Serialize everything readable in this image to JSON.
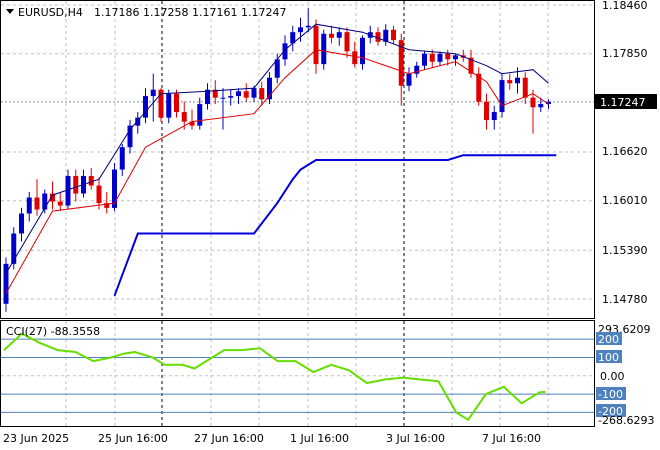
{
  "header": {
    "symbol": "EURUSD,H4",
    "ohlc": "1.17186 1.17258 1.17161 1.17247"
  },
  "price_axis": {
    "ticks": [
      "1.18460",
      "1.17850",
      "1.16620",
      "1.16010",
      "1.15390",
      "1.14780"
    ],
    "current_price": "1.17247"
  },
  "time_axis": {
    "ticks": [
      "23 Jun 2025",
      "25 Jun 16:00",
      "27 Jun 16:00",
      "1 Jul 16:00",
      "3 Jul 16:00",
      "7 Jul 16:00"
    ]
  },
  "cci": {
    "label": "CCI(27) -88.3558",
    "max": "293.6209",
    "min": "-268.6293",
    "levels": [
      "200",
      "100",
      "0.00",
      "-100",
      "-200"
    ]
  },
  "colors": {
    "bull": "#0000cc",
    "bear": "#e00000",
    "upper_band": "#000080",
    "lower_band": "#e00000",
    "trail": "#0000dd",
    "cci": "#66dd00",
    "level_box": "#4f81bd",
    "grid": "#c0c0c0"
  },
  "chart_data": [
    {
      "type": "candlestick",
      "title": "EURUSD,H4",
      "price_range": [
        1.1448,
        1.1848
      ],
      "ohlc": [
        [
          1.1472,
          1.153,
          1.1462,
          1.1522
        ],
        [
          1.1522,
          1.1568,
          1.1515,
          1.156
        ],
        [
          1.156,
          1.1592,
          1.155,
          1.1585
        ],
        [
          1.1585,
          1.1612,
          1.1575,
          1.1605
        ],
        [
          1.1605,
          1.1628,
          1.1582,
          1.159
        ],
        [
          1.159,
          1.1615,
          1.1585,
          1.161
        ],
        [
          1.161,
          1.1625,
          1.159,
          1.16
        ],
        [
          1.16,
          1.1612,
          1.1588,
          1.1595
        ],
        [
          1.1595,
          1.164,
          1.159,
          1.1632
        ],
        [
          1.1632,
          1.164,
          1.16,
          1.161
        ],
        [
          1.161,
          1.164,
          1.1605,
          1.1632
        ],
        [
          1.1632,
          1.1642,
          1.1615,
          1.162
        ],
        [
          1.162,
          1.163,
          1.159,
          1.1598
        ],
        [
          1.1598,
          1.1612,
          1.1585,
          1.1592
        ],
        [
          1.1592,
          1.1648,
          1.1588,
          1.164
        ],
        [
          1.164,
          1.1672,
          1.1632,
          1.1668
        ],
        [
          1.1668,
          1.1702,
          1.166,
          1.1695
        ],
        [
          1.1695,
          1.1712,
          1.1685,
          1.1705
        ],
        [
          1.1705,
          1.1742,
          1.1698,
          1.1732
        ],
        [
          1.1732,
          1.176,
          1.17,
          1.174
        ],
        [
          1.174,
          1.1742,
          1.17,
          1.1705
        ],
        [
          1.1705,
          1.174,
          1.1698,
          1.1735
        ],
        [
          1.1735,
          1.174,
          1.1705,
          1.1712
        ],
        [
          1.1712,
          1.1725,
          1.169,
          1.17
        ],
        [
          1.17,
          1.1715,
          1.169,
          1.1695
        ],
        [
          1.1695,
          1.173,
          1.169,
          1.1722
        ],
        [
          1.1722,
          1.1748,
          1.1715,
          1.174
        ],
        [
          1.174,
          1.1752,
          1.1722,
          1.173
        ],
        [
          1.173,
          1.1742,
          1.169,
          1.173
        ],
        [
          1.173,
          1.174,
          1.172,
          1.1732
        ],
        [
          1.1732,
          1.1742,
          1.1722,
          1.1738
        ],
        [
          1.1738,
          1.1748,
          1.1725,
          1.173
        ],
        [
          1.173,
          1.1745,
          1.1725,
          1.1742
        ],
        [
          1.1742,
          1.175,
          1.172,
          1.1728
        ],
        [
          1.1728,
          1.1762,
          1.1722,
          1.1755
        ],
        [
          1.1755,
          1.1785,
          1.1748,
          1.1778
        ],
        [
          1.1778,
          1.1808,
          1.177,
          1.1798
        ],
        [
          1.1798,
          1.182,
          1.1788,
          1.1812
        ],
        [
          1.1812,
          1.183,
          1.18,
          1.1818
        ],
        [
          1.1818,
          1.1842,
          1.1812,
          1.182
        ],
        [
          1.182,
          1.1828,
          1.176,
          1.1772
        ],
        [
          1.1772,
          1.1815,
          1.1765,
          1.181
        ],
        [
          1.181,
          1.182,
          1.1798,
          1.1805
        ],
        [
          1.1805,
          1.1818,
          1.1795,
          1.1812
        ],
        [
          1.1812,
          1.1818,
          1.178,
          1.1788
        ],
        [
          1.1788,
          1.18,
          1.1768,
          1.1772
        ],
        [
          1.1772,
          1.1808,
          1.1765,
          1.1805
        ],
        [
          1.1805,
          1.182,
          1.1798,
          1.1812
        ],
        [
          1.1812,
          1.1818,
          1.1795,
          1.18
        ],
        [
          1.18,
          1.1822,
          1.1795,
          1.1815
        ],
        [
          1.1815,
          1.182,
          1.1798,
          1.1802
        ],
        [
          1.1802,
          1.181,
          1.172,
          1.1745
        ],
        [
          1.1745,
          1.1768,
          1.1738,
          1.176
        ],
        [
          1.176,
          1.1775,
          1.1755,
          1.177
        ],
        [
          1.177,
          1.1788,
          1.1765,
          1.1785
        ],
        [
          1.1785,
          1.179,
          1.1768,
          1.1775
        ],
        [
          1.1775,
          1.1788,
          1.177,
          1.1785
        ],
        [
          1.1785,
          1.179,
          1.177,
          1.1778
        ],
        [
          1.1778,
          1.1785,
          1.177,
          1.1783
        ],
        [
          1.1783,
          1.179,
          1.1775,
          1.178
        ],
        [
          1.178,
          1.179,
          1.1755,
          1.176
        ],
        [
          1.176,
          1.1768,
          1.172,
          1.1725
        ],
        [
          1.1725,
          1.1735,
          1.169,
          1.1702
        ],
        [
          1.1702,
          1.172,
          1.169,
          1.1712
        ],
        [
          1.1712,
          1.176,
          1.1705,
          1.1752
        ],
        [
          1.1752,
          1.176,
          1.174,
          1.1748
        ],
        [
          1.1748,
          1.1768,
          1.1735,
          1.1755
        ],
        [
          1.1755,
          1.1762,
          1.1722,
          1.173
        ],
        [
          1.173,
          1.174,
          1.1685,
          1.1718
        ],
        [
          1.1718,
          1.173,
          1.1712,
          1.1722
        ],
        [
          1.1722,
          1.1728,
          1.1716,
          1.1725
        ]
      ],
      "upper_band": [
        [
          0,
          1.151
        ],
        [
          6,
          1.1608
        ],
        [
          12,
          1.1628
        ],
        [
          16,
          1.169
        ],
        [
          20,
          1.1735
        ],
        [
          26,
          1.1738
        ],
        [
          32,
          1.1742
        ],
        [
          36,
          1.179
        ],
        [
          40,
          1.1822
        ],
        [
          46,
          1.1812
        ],
        [
          52,
          1.179
        ],
        [
          58,
          1.1785
        ],
        [
          62,
          1.177
        ],
        [
          64,
          1.176
        ],
        [
          68,
          1.1765
        ],
        [
          70,
          1.1748
        ]
      ],
      "lower_band": [
        [
          0,
          1.1485
        ],
        [
          6,
          1.1588
        ],
        [
          14,
          1.1598
        ],
        [
          18,
          1.1668
        ],
        [
          24,
          1.17
        ],
        [
          32,
          1.171
        ],
        [
          36,
          1.1755
        ],
        [
          40,
          1.179
        ],
        [
          46,
          1.178
        ],
        [
          52,
          1.176
        ],
        [
          58,
          1.1775
        ],
        [
          62,
          1.175
        ],
        [
          64,
          1.172
        ],
        [
          68,
          1.1735
        ],
        [
          70,
          1.1722
        ]
      ],
      "trail": [
        [
          14,
          1.1482
        ],
        [
          17,
          1.156
        ],
        [
          32,
          1.156
        ],
        [
          35,
          1.1598
        ],
        [
          37,
          1.1628
        ],
        [
          38,
          1.164
        ],
        [
          40,
          1.1652
        ],
        [
          57,
          1.1652
        ],
        [
          59,
          1.1658
        ],
        [
          71,
          1.1658
        ]
      ]
    },
    {
      "type": "line",
      "title": "CCI(27) -88.3558",
      "ylim": [
        -268.6293,
        293.6209
      ],
      "series": [
        {
          "values": [
            [
              0,
              140
            ],
            [
              3,
              230
            ],
            [
              6,
              180
            ],
            [
              9,
              140
            ],
            [
              12,
              130
            ],
            [
              15,
              80
            ],
            [
              18,
              100
            ],
            [
              20,
              120
            ],
            [
              22,
              130
            ],
            [
              25,
              100
            ],
            [
              27,
              60
            ],
            [
              30,
              60
            ],
            [
              32,
              40
            ],
            [
              34,
              80
            ],
            [
              37,
              140
            ],
            [
              40,
              140
            ],
            [
              43,
              150
            ],
            [
              46,
              80
            ],
            [
              49,
              80
            ],
            [
              52,
              20
            ],
            [
              55,
              60
            ],
            [
              58,
              30
            ],
            [
              61,
              -40
            ],
            [
              64,
              -20
            ],
            [
              67,
              -10
            ],
            [
              70,
              -20
            ],
            [
              73,
              -30
            ],
            [
              76,
              -200
            ],
            [
              78,
              -240
            ],
            [
              81,
              -100
            ],
            [
              84,
              -60
            ],
            [
              87,
              -150
            ],
            [
              90,
              -90
            ],
            [
              91,
              -88
            ]
          ]
        }
      ]
    }
  ]
}
